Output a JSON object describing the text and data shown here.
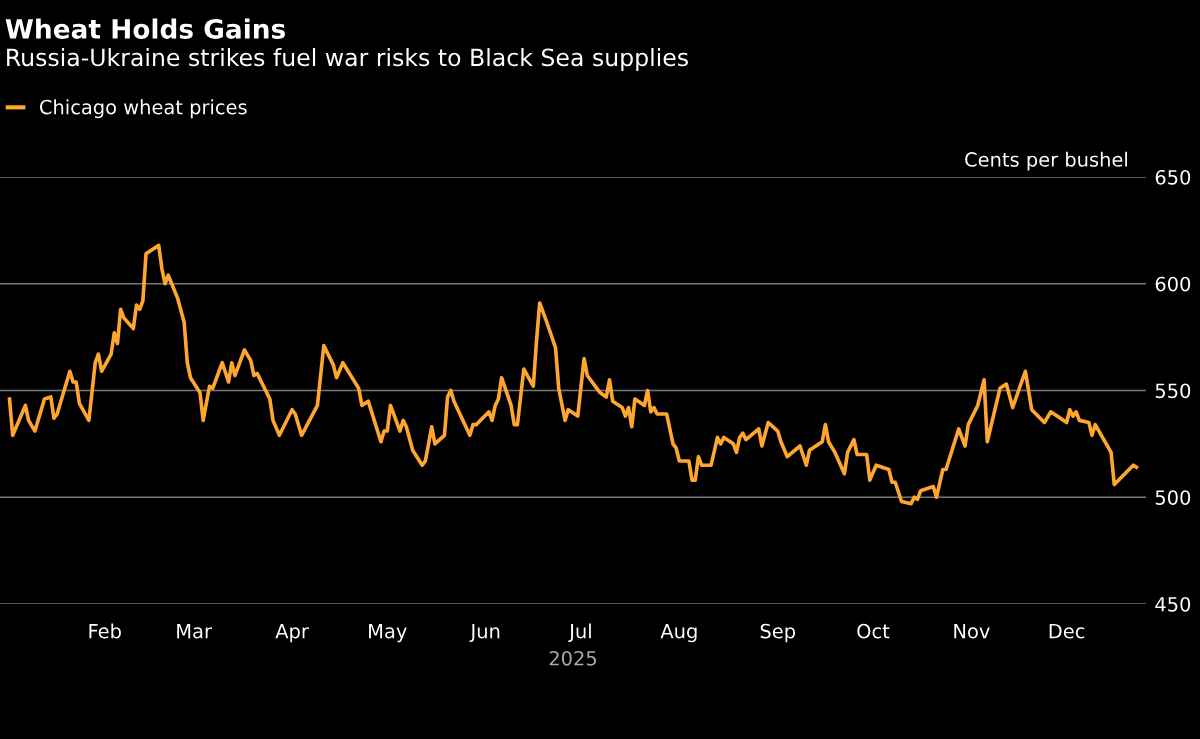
{
  "chart_data": {
    "type": "line",
    "title": "Wheat Holds Gains",
    "subtitle": "Russia-Ukraine strikes fuel war risks to Black Sea supplies",
    "ylabel": "Cents per bushel",
    "xlabel": "2025",
    "x": [
      "2025-01-02",
      "2025-01-03",
      "2025-01-07",
      "2025-01-08",
      "2025-01-10",
      "2025-01-13",
      "2025-01-15",
      "2025-01-16",
      "2025-01-17",
      "2025-01-21",
      "2025-01-22",
      "2025-01-23",
      "2025-01-24",
      "2025-01-27",
      "2025-01-29",
      "2025-01-30",
      "2025-01-31",
      "2025-02-03",
      "2025-02-04",
      "2025-02-05",
      "2025-02-06",
      "2025-02-07",
      "2025-02-10",
      "2025-02-11",
      "2025-02-12",
      "2025-02-13",
      "2025-02-14",
      "2025-02-18",
      "2025-02-19",
      "2025-02-20",
      "2025-02-21",
      "2025-02-24",
      "2025-02-26",
      "2025-02-27",
      "2025-02-28",
      "2025-03-03",
      "2025-03-04",
      "2025-03-06",
      "2025-03-07",
      "2025-03-10",
      "2025-03-12",
      "2025-03-13",
      "2025-03-14",
      "2025-03-17",
      "2025-03-19",
      "2025-03-20",
      "2025-03-21",
      "2025-03-25",
      "2025-03-26",
      "2025-03-28",
      "2025-04-01",
      "2025-04-02",
      "2025-04-04",
      "2025-04-09",
      "2025-04-11",
      "2025-04-14",
      "2025-04-15",
      "2025-04-17",
      "2025-04-22",
      "2025-04-23",
      "2025-04-25",
      "2025-04-29",
      "2025-04-30",
      "2025-05-01",
      "2025-05-02",
      "2025-05-05",
      "2025-05-06",
      "2025-05-07",
      "2025-05-09",
      "2025-05-12",
      "2025-05-13",
      "2025-05-15",
      "2025-05-16",
      "2025-05-19",
      "2025-05-20",
      "2025-05-21",
      "2025-05-22",
      "2025-05-27",
      "2025-05-28",
      "2025-05-29",
      "2025-06-02",
      "2025-06-03",
      "2025-06-04",
      "2025-06-05",
      "2025-06-06",
      "2025-06-09",
      "2025-06-10",
      "2025-06-11",
      "2025-06-13",
      "2025-06-16",
      "2025-06-17",
      "2025-06-18",
      "2025-06-20",
      "2025-06-23",
      "2025-06-24",
      "2025-06-26",
      "2025-06-27",
      "2025-06-30",
      "2025-07-02",
      "2025-07-03",
      "2025-07-07",
      "2025-07-09",
      "2025-07-10",
      "2025-07-11",
      "2025-07-14",
      "2025-07-15",
      "2025-07-16",
      "2025-07-17",
      "2025-07-18",
      "2025-07-21",
      "2025-07-22",
      "2025-07-23",
      "2025-07-24",
      "2025-07-25",
      "2025-07-28",
      "2025-07-30",
      "2025-07-31",
      "2025-08-01",
      "2025-08-04",
      "2025-08-05",
      "2025-08-06",
      "2025-08-07",
      "2025-08-08",
      "2025-08-11",
      "2025-08-13",
      "2025-08-14",
      "2025-08-15",
      "2025-08-18",
      "2025-08-19",
      "2025-08-20",
      "2025-08-21",
      "2025-08-22",
      "2025-08-26",
      "2025-08-27",
      "2025-08-29",
      "2025-09-01",
      "2025-09-02",
      "2025-09-04",
      "2025-09-08",
      "2025-09-10",
      "2025-09-11",
      "2025-09-15",
      "2025-09-16",
      "2025-09-17",
      "2025-09-19",
      "2025-09-22",
      "2025-09-23",
      "2025-09-25",
      "2025-09-26",
      "2025-09-29",
      "2025-09-30",
      "2025-10-02",
      "2025-10-06",
      "2025-10-07",
      "2025-10-08",
      "2025-10-10",
      "2025-10-13",
      "2025-10-14",
      "2025-10-15",
      "2025-10-16",
      "2025-10-20",
      "2025-10-21",
      "2025-10-23",
      "2025-10-24",
      "2025-10-28",
      "2025-10-30",
      "2025-10-31",
      "2025-11-03",
      "2025-11-05",
      "2025-11-06",
      "2025-11-10",
      "2025-11-12",
      "2025-11-14",
      "2025-11-18",
      "2025-11-20",
      "2025-11-24",
      "2025-11-26",
      "2025-12-01",
      "2025-12-02",
      "2025-12-03",
      "2025-12-04",
      "2025-12-05",
      "2025-12-08",
      "2025-12-09",
      "2025-12-10",
      "2025-12-15",
      "2025-12-16",
      "2025-12-22",
      "2025-12-23"
    ],
    "series": [
      {
        "name": "Chicago wheat prices",
        "color": "#ffa630",
        "values": [
          546,
          529,
          543,
          536,
          531,
          546,
          547,
          537,
          539,
          559,
          554,
          554,
          544,
          536,
          563,
          567,
          559,
          567,
          577,
          572,
          588,
          584,
          579,
          590,
          588,
          592,
          614,
          618,
          607,
          600,
          604,
          593,
          582,
          563,
          556,
          549,
          536,
          552,
          551,
          563,
          554,
          563,
          557,
          569,
          564,
          557,
          558,
          546,
          536,
          529,
          541,
          539,
          529,
          543,
          571,
          562,
          556,
          563,
          551,
          543,
          545,
          526,
          531,
          531,
          543,
          531,
          536,
          533,
          522,
          515,
          517,
          533,
          525,
          529,
          547,
          550,
          545,
          529,
          534,
          534,
          540,
          536,
          543,
          546,
          556,
          543,
          534,
          534,
          560,
          552,
          573,
          591,
          583,
          570,
          551,
          536,
          541,
          538,
          565,
          557,
          549,
          547,
          555,
          545,
          542,
          538,
          542,
          533,
          546,
          543,
          550,
          540,
          542,
          539,
          539,
          525,
          523,
          517,
          517,
          508,
          508,
          519,
          515,
          515,
          528,
          525,
          528,
          525,
          521,
          528,
          530,
          527,
          532,
          524,
          535,
          531,
          526,
          519,
          524,
          515,
          522,
          526,
          534,
          526,
          521,
          511,
          521,
          527,
          520,
          520,
          508,
          515,
          513,
          507,
          507,
          498,
          497,
          500,
          499,
          503,
          505,
          500,
          513,
          513,
          532,
          524,
          534,
          543,
          555,
          526,
          551,
          553,
          542,
          559,
          541,
          535,
          540,
          535,
          541,
          538,
          540,
          536,
          535,
          529,
          534,
          521,
          506,
          515,
          514
        ]
      }
    ],
    "xlim": [
      "2024-12-30",
      "2025-12-26"
    ],
    "xticks": [
      {
        "value": "2025-02-01",
        "label": "Feb"
      },
      {
        "value": "2025-03-01",
        "label": "Mar"
      },
      {
        "value": "2025-04-01",
        "label": "Apr"
      },
      {
        "value": "2025-05-01",
        "label": "May"
      },
      {
        "value": "2025-06-01",
        "label": "Jun"
      },
      {
        "value": "2025-07-01",
        "label": "Jul"
      },
      {
        "value": "2025-08-01",
        "label": "Aug"
      },
      {
        "value": "2025-09-01",
        "label": "Sep"
      },
      {
        "value": "2025-10-01",
        "label": "Oct"
      },
      {
        "value": "2025-11-01",
        "label": "Nov"
      },
      {
        "value": "2025-12-01",
        "label": "Dec"
      }
    ],
    "ylim": [
      450,
      650
    ],
    "yticks": [
      450,
      500,
      550,
      600,
      650
    ],
    "grid": "y",
    "legend": "top left",
    "marker": "none",
    "line_style": "solid"
  }
}
